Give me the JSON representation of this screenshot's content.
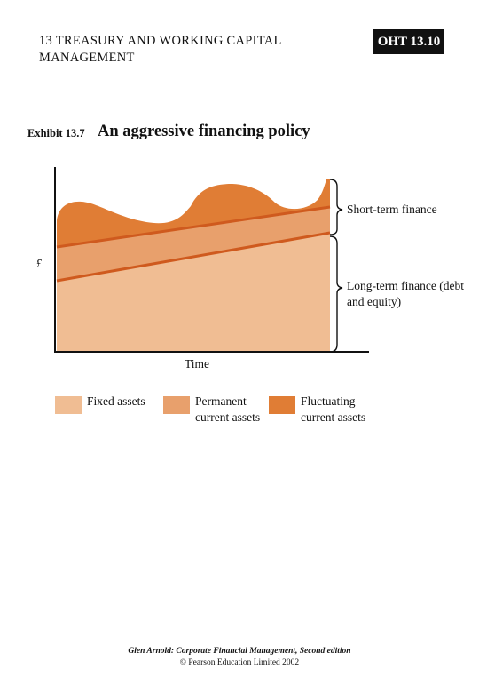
{
  "header": {
    "chapter_title": "13 TREASURY AND WORKING CAPITAL MANAGEMENT",
    "slide_id": "OHT 13.10"
  },
  "exhibit": {
    "label": "Exhibit 13.7",
    "title": "An aggressive financing policy"
  },
  "diagram": {
    "y_axis_label": "£",
    "x_axis_label": "Time",
    "bracket_labels": {
      "short_term": "Short-term finance",
      "long_term": "Long-term finance (debt and equity)"
    },
    "colors": {
      "fixed_assets": "#f0bd93",
      "permanent_current_assets": "#e8a06c",
      "fluctuating_current_assets": "#e07d35",
      "trend_line": "#cf5a1e",
      "axis": "#111111"
    }
  },
  "legend": {
    "items": [
      {
        "label": "Fixed assets",
        "color": "#f0bd93"
      },
      {
        "label": "Permanent current assets",
        "color": "#e8a06c"
      },
      {
        "label": "Fluctuating current assets",
        "color": "#e07d35"
      }
    ]
  },
  "footer": {
    "source": "Glen Arnold: Corporate Financial Management, Second edition",
    "copyright": "© Pearson Education Limited 2002"
  }
}
